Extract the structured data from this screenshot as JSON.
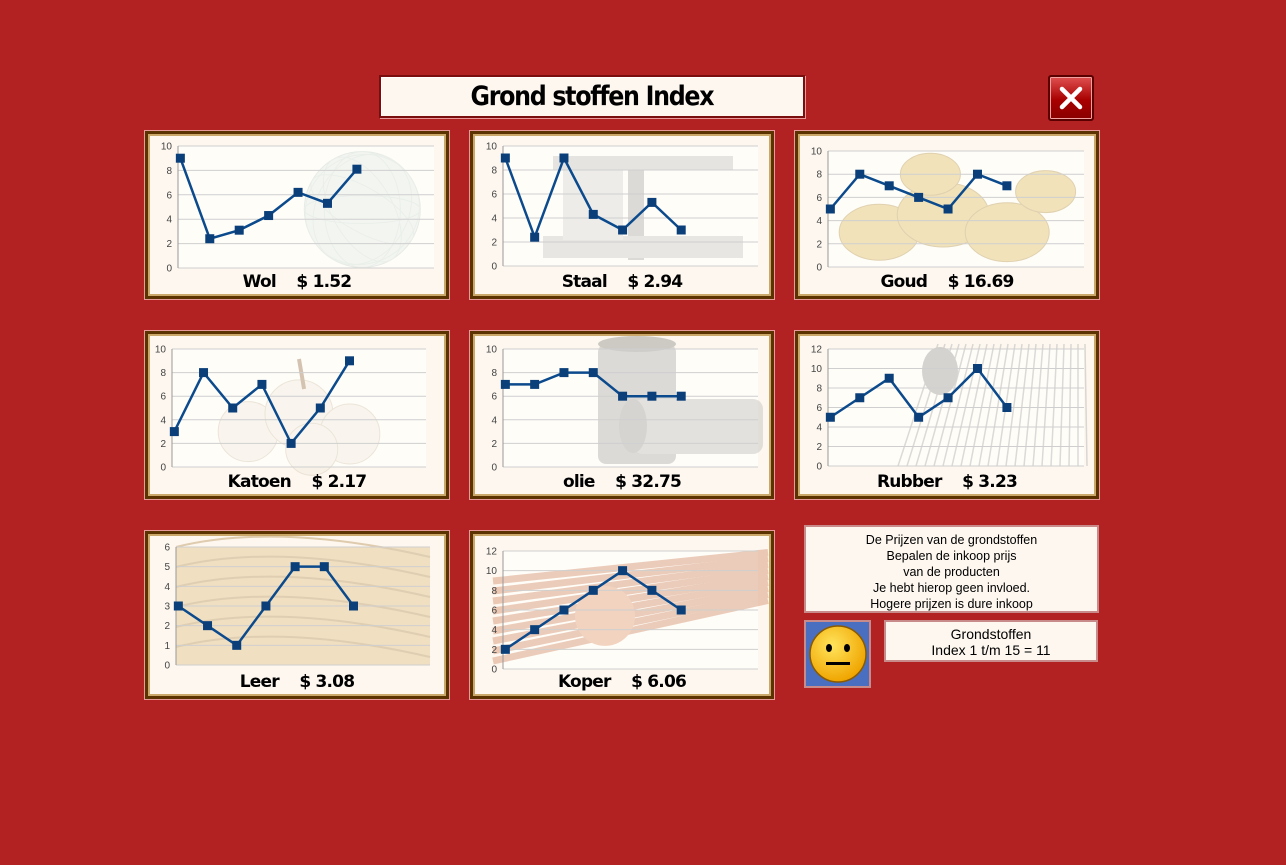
{
  "title": "Grond stoffen Index",
  "close_button": {
    "icon": "close-icon"
  },
  "colors": {
    "background": "#b22222",
    "line": "#0b4a8c",
    "marker": "#0b3f7a",
    "panel_bg": "#fdf7ef"
  },
  "commodities": [
    {
      "key": "wol",
      "name": "Wol",
      "price": "$ 1.52",
      "illustration": "yarn-ball",
      "chart_data": {
        "type": "line",
        "ylim": [
          0,
          10
        ],
        "yticks": [
          "0",
          "2",
          "4",
          "6",
          "8",
          "10"
        ],
        "values": [
          9,
          2.4,
          3.1,
          4.3,
          6.2,
          5.3,
          8.1
        ]
      }
    },
    {
      "key": "staal",
      "name": "Staal",
      "price": "$ 2.94",
      "illustration": "steel-beam",
      "chart_data": {
        "type": "line",
        "ylim": [
          0,
          10
        ],
        "yticks": [
          "0",
          "2",
          "4",
          "6",
          "8",
          "10"
        ],
        "values": [
          9,
          2.4,
          9,
          4.3,
          3,
          5.3,
          3
        ]
      }
    },
    {
      "key": "goud",
      "name": "Goud",
      "price": "$ 16.69",
      "illustration": "gold-nuggets",
      "chart_data": {
        "type": "line",
        "ylim": [
          0,
          10
        ],
        "yticks": [
          "0",
          "2",
          "4",
          "6",
          "8",
          "10"
        ],
        "values": [
          5,
          8,
          7,
          6,
          5,
          8,
          7
        ]
      }
    },
    {
      "key": "katoen",
      "name": "Katoen",
      "price": "$ 2.17",
      "illustration": "cotton",
      "chart_data": {
        "type": "line",
        "ylim": [
          0,
          10
        ],
        "yticks": [
          "0",
          "2",
          "4",
          "6",
          "8",
          "10"
        ],
        "values": [
          3,
          8,
          5,
          7,
          2,
          5,
          9
        ]
      }
    },
    {
      "key": "olie",
      "name": "olie",
      "price": "$ 32.75",
      "illustration": "oil-barrels",
      "chart_data": {
        "type": "line",
        "ylim": [
          0,
          10
        ],
        "yticks": [
          "0",
          "2",
          "4",
          "6",
          "8",
          "10"
        ],
        "values": [
          7,
          7,
          8,
          8,
          6,
          6,
          6
        ]
      }
    },
    {
      "key": "rubber",
      "name": "Rubber",
      "price": "$ 3.23",
      "illustration": "rubber-hose",
      "chart_data": {
        "type": "line",
        "ylim": [
          0,
          12
        ],
        "yticks": [
          "0",
          "2",
          "4",
          "6",
          "8",
          "10",
          "12"
        ],
        "values": [
          5,
          7,
          9,
          5,
          7,
          10,
          6
        ]
      }
    },
    {
      "key": "leer",
      "name": "Leer",
      "price": "$ 3.08",
      "illustration": "leather",
      "chart_data": {
        "type": "line",
        "ylim": [
          0,
          6
        ],
        "yticks": [
          "0",
          "1",
          "2",
          "3",
          "4",
          "5",
          "6"
        ],
        "values": [
          3,
          2,
          1,
          3,
          5,
          5,
          3
        ]
      }
    },
    {
      "key": "koper",
      "name": "Koper",
      "price": "$ 6.06",
      "illustration": "copper-rods",
      "chart_data": {
        "type": "line",
        "ylim": [
          0,
          12
        ],
        "yticks": [
          "0",
          "2",
          "4",
          "6",
          "8",
          "10",
          "12"
        ],
        "values": [
          2,
          4,
          6,
          8,
          10,
          8,
          6
        ]
      }
    }
  ],
  "info": {
    "lines": [
      "De Prijzen van de grondstoffen",
      "Bepalen de inkoop prijs",
      "van de producten",
      "Je hebt hierop geen invloed.",
      "Hogere prijzen is dure inkoop"
    ]
  },
  "smiley": {
    "icon": "neutral-face-icon"
  },
  "index": {
    "line1": "Grondstoffen",
    "line2": "Index 1 t/m 15 =  11"
  }
}
